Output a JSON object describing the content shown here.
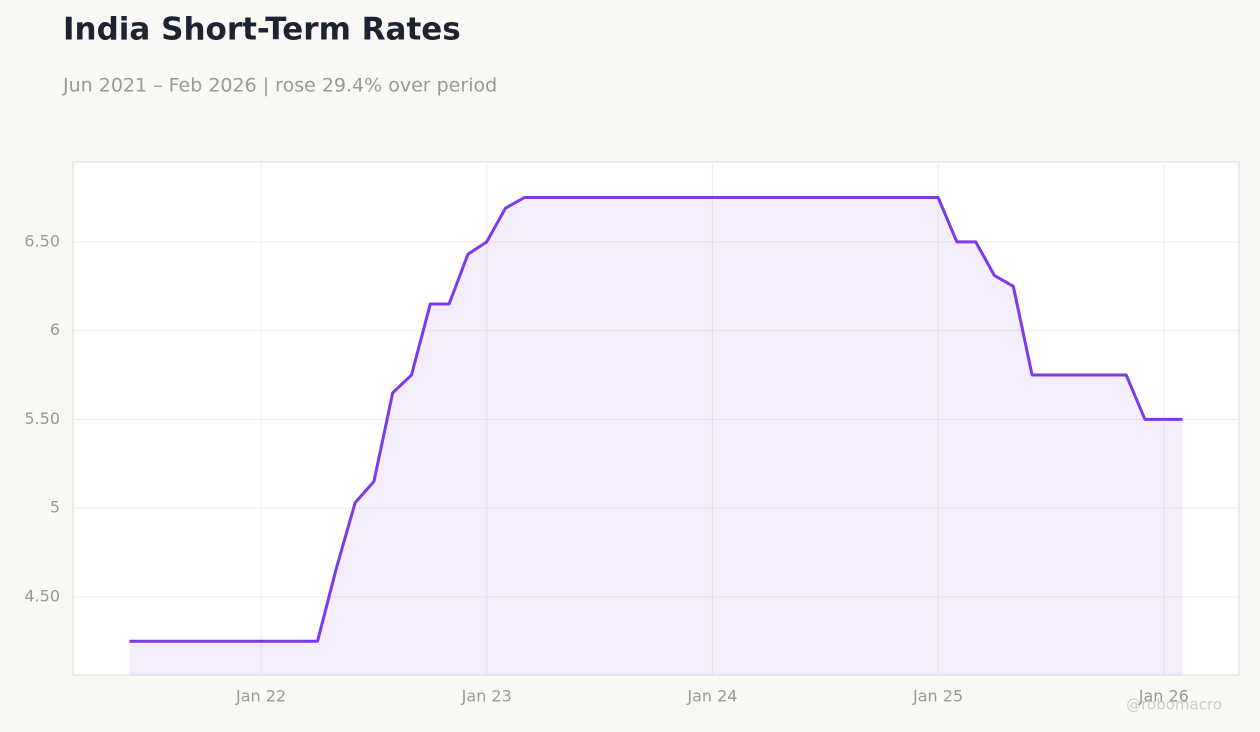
{
  "chart_data": {
    "type": "line",
    "title": "India Short-Term Rates",
    "subtitle": "Jun 2021 – Feb 2026 | rose 29.4% over period",
    "watermark": "@robomacro",
    "color": "#7c3aed",
    "grid": true,
    "x": [
      "2021-06",
      "2021-07",
      "2021-08",
      "2021-09",
      "2021-10",
      "2021-11",
      "2021-12",
      "2022-01",
      "2022-02",
      "2022-03",
      "2022-04",
      "2022-05",
      "2022-06",
      "2022-07",
      "2022-08",
      "2022-09",
      "2022-10",
      "2022-11",
      "2022-12",
      "2023-01",
      "2023-02",
      "2023-03",
      "2023-04",
      "2023-05",
      "2023-06",
      "2023-07",
      "2023-08",
      "2023-09",
      "2023-10",
      "2023-11",
      "2023-12",
      "2024-01",
      "2024-02",
      "2024-03",
      "2024-04",
      "2024-05",
      "2024-06",
      "2024-07",
      "2024-08",
      "2024-09",
      "2024-10",
      "2024-11",
      "2024-12",
      "2025-01",
      "2025-02",
      "2025-03",
      "2025-04",
      "2025-05",
      "2025-06",
      "2025-07",
      "2025-08",
      "2025-09",
      "2025-10",
      "2025-11",
      "2025-12",
      "2026-01",
      "2026-02"
    ],
    "values": [
      4.25,
      4.25,
      4.25,
      4.25,
      4.25,
      4.25,
      4.25,
      4.25,
      4.25,
      4.25,
      4.25,
      4.66,
      5.03,
      5.15,
      5.65,
      5.75,
      6.15,
      6.15,
      6.43,
      6.5,
      6.69,
      6.75,
      6.75,
      6.75,
      6.75,
      6.75,
      6.75,
      6.75,
      6.75,
      6.75,
      6.75,
      6.75,
      6.75,
      6.75,
      6.75,
      6.75,
      6.75,
      6.75,
      6.75,
      6.75,
      6.75,
      6.75,
      6.75,
      6.75,
      6.5,
      6.5,
      6.31,
      6.25,
      5.75,
      5.75,
      5.75,
      5.75,
      5.75,
      5.75,
      5.5,
      5.5,
      5.5
    ],
    "xlim": [
      "2021-03",
      "2026-05"
    ],
    "xticks": [
      {
        "value": "2022-01",
        "label": "Jan 22"
      },
      {
        "value": "2023-01",
        "label": "Jan 23"
      },
      {
        "value": "2024-01",
        "label": "Jan 24"
      },
      {
        "value": "2025-01",
        "label": "Jan 25"
      },
      {
        "value": "2026-01",
        "label": "Jan 26"
      }
    ],
    "ylim": [
      4.06,
      6.95
    ],
    "yticks": [
      {
        "value": 4.5,
        "label": "4.50"
      },
      5,
      {
        "value": 5.5,
        "label": "5.50"
      },
      6,
      {
        "value": 6.5,
        "label": "6.50"
      }
    ]
  }
}
